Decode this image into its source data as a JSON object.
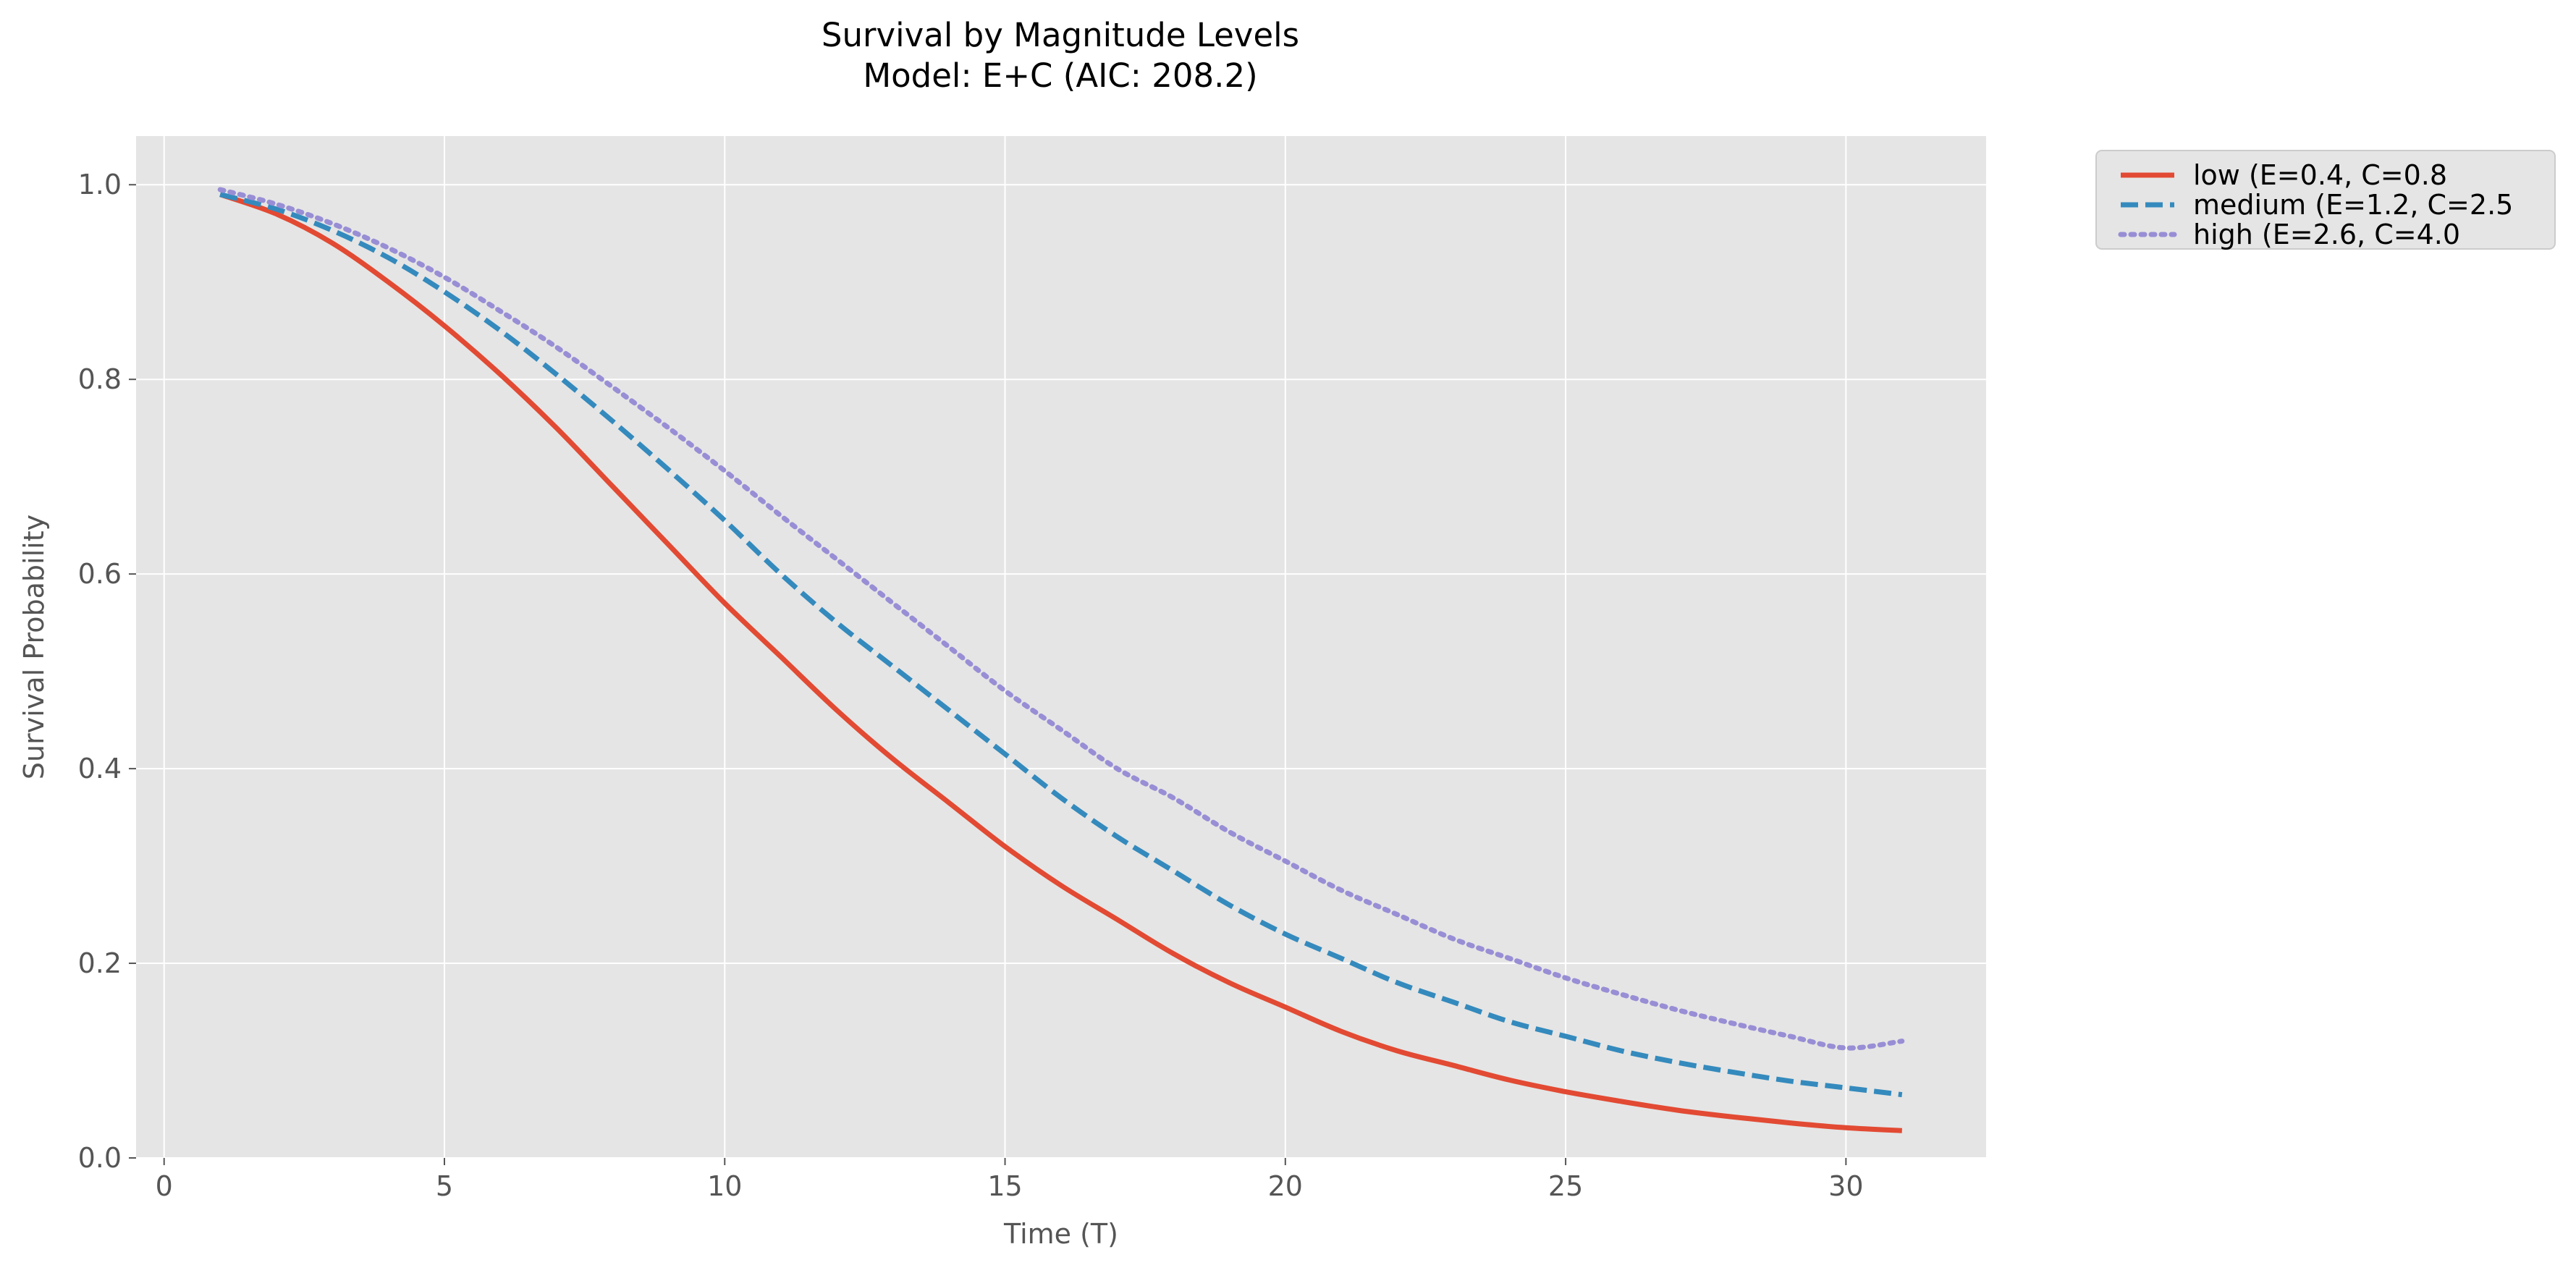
{
  "chart_data": {
    "type": "line",
    "title": "Survival by Magnitude Levels",
    "subtitle": "Model: E+C (AIC: 208.2)",
    "xlabel": "Time (T)",
    "ylabel": "Survival Probability",
    "xlim": [
      -0.5,
      32.5
    ],
    "ylim": [
      0.0,
      1.05
    ],
    "xticks": [
      0,
      5,
      10,
      15,
      20,
      25,
      30
    ],
    "yticks": [
      0.0,
      0.2,
      0.4,
      0.6,
      0.8,
      1.0
    ],
    "xtick_labels": [
      "0",
      "5",
      "10",
      "15",
      "20",
      "25",
      "30"
    ],
    "ytick_labels": [
      "0.0",
      "0.2",
      "0.4",
      "0.6",
      "0.8",
      "1.0"
    ],
    "grid": true,
    "legend_position": "outside-top-right",
    "x": [
      1,
      2,
      3,
      4,
      5,
      6,
      7,
      8,
      9,
      10,
      11,
      12,
      13,
      14,
      15,
      16,
      17,
      18,
      19,
      20,
      21,
      22,
      23,
      24,
      25,
      26,
      27,
      28,
      29,
      30,
      31
    ],
    "series": [
      {
        "name": "low (E=0.4, C=0.8",
        "color": "#E24A33",
        "dash": "solid",
        "values": [
          0.99,
          0.97,
          0.94,
          0.9,
          0.855,
          0.805,
          0.75,
          0.69,
          0.63,
          0.57,
          0.515,
          0.46,
          0.41,
          0.365,
          0.32,
          0.28,
          0.245,
          0.21,
          0.18,
          0.155,
          0.13,
          0.11,
          0.095,
          0.08,
          0.068,
          0.058,
          0.049,
          0.042,
          0.036,
          0.031,
          0.028
        ]
      },
      {
        "name": "medium (E=1.2, C=2.5",
        "color": "#348ABD",
        "dash": "dashed",
        "values": [
          0.99,
          0.975,
          0.953,
          0.925,
          0.89,
          0.85,
          0.805,
          0.757,
          0.707,
          0.655,
          0.6,
          0.55,
          0.505,
          0.46,
          0.415,
          0.37,
          0.33,
          0.295,
          0.26,
          0.23,
          0.205,
          0.18,
          0.16,
          0.14,
          0.125,
          0.11,
          0.098,
          0.088,
          0.079,
          0.072,
          0.065
        ]
      },
      {
        "name": "high (E=2.6, C=4.0",
        "color": "#988ED5",
        "dash": "dotted",
        "values": [
          0.995,
          0.98,
          0.96,
          0.935,
          0.905,
          0.87,
          0.833,
          0.792,
          0.75,
          0.706,
          0.66,
          0.615,
          0.57,
          0.525,
          0.48,
          0.44,
          0.4,
          0.37,
          0.335,
          0.305,
          0.275,
          0.25,
          0.225,
          0.205,
          0.185,
          0.168,
          0.152,
          0.138,
          0.125,
          0.113,
          0.12
        ]
      }
    ]
  }
}
